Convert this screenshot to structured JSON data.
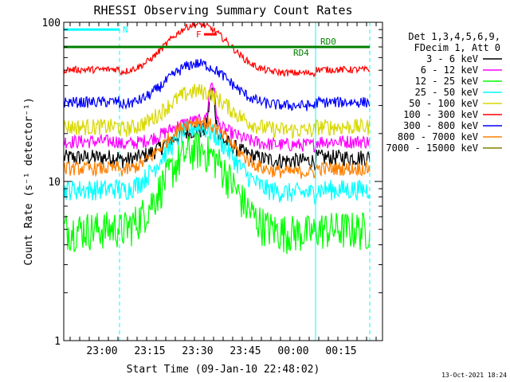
{
  "chart_data": {
    "type": "line",
    "title": "RHESSI Observing Summary Count Rates",
    "xlabel": "Start Time (09-Jan-10 22:48:02)",
    "ylabel": "Count Rate (s⁻¹ detector⁻¹)",
    "yscale": "log",
    "ylim": [
      1,
      100
    ],
    "xlim_minutes": [
      0,
      100
    ],
    "x_unit": "minutes after 22:48:02",
    "x_ticks": [
      {
        "label": "23:00",
        "value": 12
      },
      {
        "label": "23:15",
        "value": 27
      },
      {
        "label": "23:30",
        "value": 42
      },
      {
        "label": "23:45",
        "value": 57
      },
      {
        "label": "00:00",
        "value": 72
      },
      {
        "label": "00:15",
        "value": 87
      }
    ],
    "y_ticks": [
      {
        "label": "1",
        "value": 1
      },
      {
        "label": "10",
        "value": 10
      },
      {
        "label": "100",
        "value": 100
      }
    ],
    "legend_header": [
      "Det 1,3,4,5,6,9,",
      "FDecim 1, Att 0"
    ],
    "series": [
      {
        "name": "3 - 6 keV",
        "color": "#000000",
        "base": 13.5,
        "peak": 21,
        "wiggle": 0.12
      },
      {
        "name": "6 - 12 keV",
        "color": "#ff00ff",
        "base": 17,
        "peak": 24,
        "wiggle": 0.1
      },
      {
        "name": "12 - 25 keV",
        "color": "#00ff00",
        "base": 4.8,
        "peak": 16,
        "wiggle": 0.28
      },
      {
        "name": "25 - 50 keV",
        "color": "#00ffff",
        "base": 8.5,
        "peak": 22,
        "wiggle": 0.15
      },
      {
        "name": "50 - 100 keV",
        "color": "#d8d800",
        "base": 21,
        "peak": 37,
        "wiggle": 0.12
      },
      {
        "name": "100 - 300 keV",
        "color": "#ff0000",
        "base": 48,
        "peak": 97,
        "wiggle": 0.05
      },
      {
        "name": "300 - 800 keV",
        "color": "#0000ff",
        "base": 30,
        "peak": 55,
        "wiggle": 0.08
      },
      {
        "name": "800 - 7000 keV",
        "color": "#ff8000",
        "base": 11.5,
        "peak": 24,
        "wiggle": 0.1
      },
      {
        "name": "7000 - 15000 keV",
        "color": "#808000",
        "base": 0,
        "peak": 0,
        "wiggle": 0
      }
    ],
    "annotations": [
      {
        "label": "N",
        "color": "#00ffff",
        "x_start": 0,
        "x_end": 17.5,
        "y": 90
      },
      {
        "label": "F",
        "color": "#ff0000",
        "x_start": 44,
        "x_end": 48,
        "y": 84
      },
      {
        "label": "RD4",
        "color": "#008000",
        "x_start": 0,
        "x_end": 79,
        "y": 70
      },
      {
        "label": "RD0",
        "color": "#008000",
        "x_start": 79,
        "x_end": 96,
        "y": 70
      }
    ],
    "vertical_markers": [
      {
        "value": 0,
        "style": "solid",
        "color": "#00ffff"
      },
      {
        "value": 17.5,
        "style": "dashed",
        "color": "#00ffff"
      },
      {
        "value": 79,
        "style": "solid",
        "color": "#00ffff"
      },
      {
        "value": 96,
        "style": "dashed",
        "color": "#00ffff"
      }
    ],
    "timestamp": "13-Oct-2021 18:24"
  }
}
